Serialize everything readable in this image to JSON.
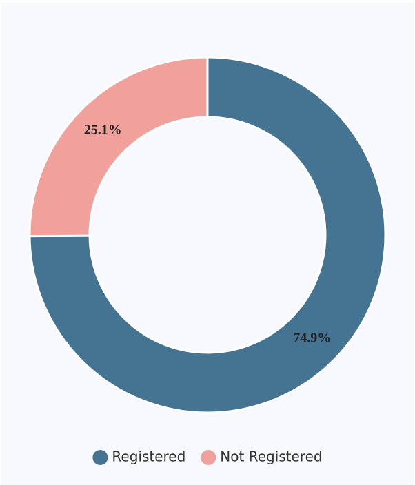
{
  "chart_data": {
    "type": "donut",
    "categories": [
      "Registered",
      "Not Registered"
    ],
    "values": [
      74.9,
      25.1
    ],
    "value_labels": [
      "74.9%",
      "25.1%"
    ],
    "colors": [
      "#457493",
      "#f0a19c"
    ],
    "legend": "bottom"
  }
}
